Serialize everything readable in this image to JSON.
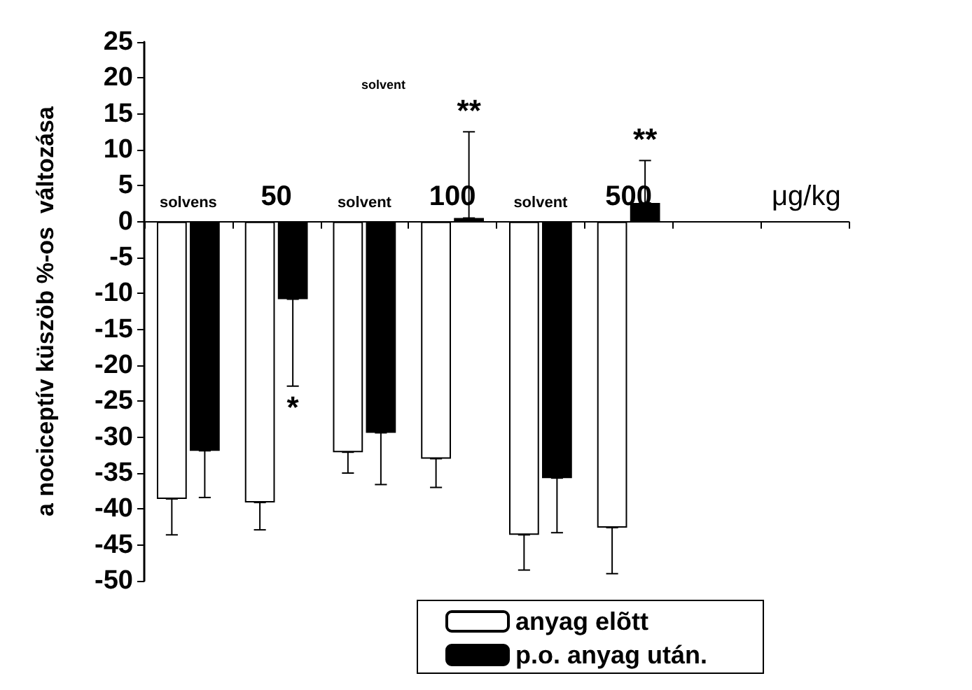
{
  "chart_data": {
    "type": "bar",
    "ylabel": "a nociceptív küszöb %-os  változása",
    "xlabel": "μg/kg",
    "categories": [
      "solvens",
      "50",
      "solvent",
      "100",
      "solvent",
      "500",
      null,
      null
    ],
    "series": [
      {
        "name": "anyag elõtt",
        "color": "#ffffff",
        "values": [
          -38.6,
          -39.1,
          -32.1,
          -33,
          -43.6,
          -42.6,
          null,
          null
        ],
        "errors": [
          [
            -43.6,
            -38.6
          ],
          [
            -42.9,
            -39.1
          ],
          [
            -35,
            -32.1
          ],
          [
            -37,
            -33
          ],
          [
            -48.5,
            -43.6
          ],
          [
            -49,
            -42.6
          ],
          null,
          null
        ]
      },
      {
        "name": "p.o. anyag után.",
        "color": "#000000",
        "values": [
          -31.9,
          -10.8,
          -29.4,
          0.5,
          -35.7,
          2.6,
          null,
          null
        ],
        "errors": [
          [
            -38.4,
            -31.9
          ],
          [
            -22.9,
            -10.8
          ],
          [
            -36.6,
            -29.4
          ],
          [
            0.5,
            12.5
          ],
          [
            -43.3,
            -35.7
          ],
          [
            2.6,
            8.5
          ],
          null,
          null
        ]
      }
    ],
    "annotations": [
      "solvent",
      {
        "text": "*",
        "x": "50",
        "y": -10.8
      },
      {
        "text": "**",
        "x": "100",
        "y": 0.5
      },
      {
        "text": "**",
        "x": "500",
        "y": 2.6
      }
    ],
    "ylim": [
      -50,
      25
    ],
    "yticks": [
      -50,
      -45,
      -40,
      -35,
      -30,
      -25,
      -20,
      -15,
      -10,
      -5,
      0,
      5,
      10,
      15,
      20,
      25
    ],
    "grid": false,
    "legend": "bottom"
  }
}
